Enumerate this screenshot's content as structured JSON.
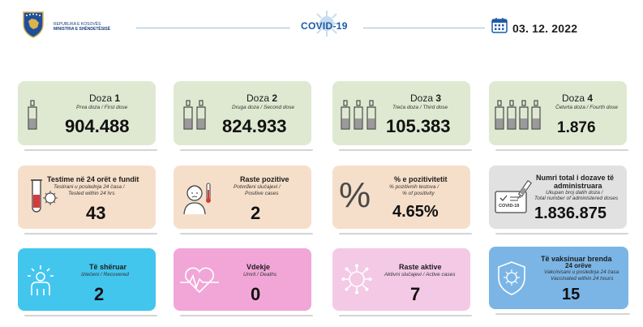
{
  "header": {
    "org_line1": "REPUBLIKA E KOSOVËS",
    "org_line2": "MINISTRIA E SHËNDETËSISË",
    "title": "COVID-19",
    "date": "03. 12. 2022",
    "icons": [
      "coat-of-arms-icon",
      "virus-icon",
      "calendar-icon"
    ],
    "accent": "#1f5aa8"
  },
  "doses": [
    {
      "label": "Doza",
      "num": "1",
      "sub": "Prva doza / First dose",
      "value": "904.488",
      "color": "#dfe9d2"
    },
    {
      "label": "Doza",
      "num": "2",
      "sub": "Druga doza / Second dose",
      "value": "824.933",
      "color": "#dfe9d2"
    },
    {
      "label": "Doza",
      "num": "3",
      "sub": "Treća doza / Third dose",
      "value": "105.383",
      "color": "#dfe9d2"
    },
    {
      "label": "Doza",
      "num": "4",
      "sub": "Četvrta doza / Fourth dose",
      "value": "1.876",
      "color": "#dfe9d2"
    }
  ],
  "stats": {
    "tests": {
      "title": "Testime në 24 orët e fundit",
      "sub1": "Testirani u poslednja 24 časa /",
      "sub2": "Tested within 24 hrs",
      "value": "43",
      "color": "#f6dfca"
    },
    "positive": {
      "title": "Raste pozitive",
      "sub1": "Potvrđeni slučajevi /",
      "sub2": "Positive cases",
      "value": "2",
      "color": "#f6dfca"
    },
    "positivity": {
      "title": "% e pozitivitetit",
      "sub1": "% pozitivnih testova /",
      "sub2": "% of positivity",
      "value": "4.65%",
      "color": "#f6dfca"
    },
    "total_doses": {
      "title1": "Numri total i dozave të",
      "title2": "administruara",
      "sub1": "Ukupan broj datih doza /",
      "sub2": "Total number of administered doses",
      "value": "1.836.875",
      "color": "#e1e1e1",
      "card_label": "COVID-19"
    },
    "recovered": {
      "title": "Të shëruar",
      "sub": "Izlečeni / Recovered",
      "value": "2",
      "color": "#42c6ee"
    },
    "deaths": {
      "title": "Vdekje",
      "sub": "Umrli / Deaths",
      "value": "0",
      "color": "#f1a6d7"
    },
    "active": {
      "title": "Raste aktive",
      "sub": "Aktivni slučajevi / Active cases",
      "value": "7",
      "color": "#f3c9e6"
    },
    "vaccinated24": {
      "title1": "Të vaksinuar brenda",
      "title2": "24 orëve",
      "sub1": "Vakcinisani u poslednja 24 časa",
      "sub2": "Vaccinated within 24 hours",
      "value": "15",
      "color": "#7bb5e6"
    }
  }
}
